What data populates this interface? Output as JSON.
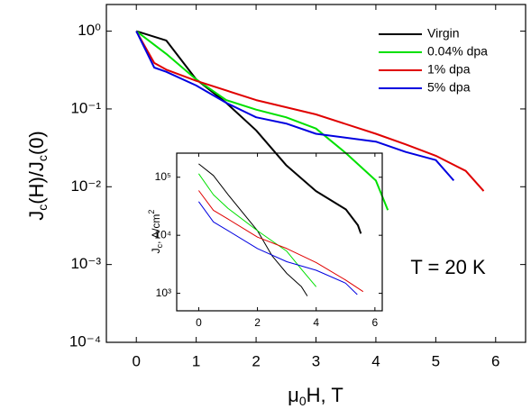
{
  "chart_data": [
    {
      "type": "line",
      "log_y": true,
      "legend": "upper right",
      "xlabel": [
        "μ",
        "0",
        "H, T"
      ],
      "ylabel": [
        "J",
        "c",
        "(H)/J",
        "c",
        "(0)"
      ],
      "annotation": "T = 20 K",
      "xlim": [
        -0.5,
        6.5
      ],
      "xticks": [
        0,
        1,
        2,
        3,
        4,
        5,
        6
      ],
      "ylim": [
        0.0001,
        2.2
      ],
      "yticks": [
        {
          "value": 0.0001,
          "label": "10⁻⁴"
        },
        {
          "value": 0.001,
          "label": "10⁻³"
        },
        {
          "value": 0.01,
          "label": "10⁻²"
        },
        {
          "value": 0.1,
          "label": "10⁻¹"
        },
        {
          "value": 1,
          "label": "10⁰"
        }
      ],
      "series": [
        {
          "name": "Virgin",
          "color": "#000000",
          "x": [
            0,
            0.5,
            1,
            1.5,
            2,
            2.5,
            3,
            3.5,
            3.7,
            3.75
          ],
          "values": [
            1,
            0.76,
            0.24,
            0.12,
            0.053,
            0.019,
            0.0088,
            0.0051,
            0.0032,
            0.0025
          ]
        },
        {
          "name": "0.04% dpa",
          "color": "#00e000",
          "x": [
            0,
            0.5,
            1,
            1.5,
            2,
            2.5,
            3,
            3.5,
            4,
            4.2
          ],
          "values": [
            1,
            0.51,
            0.24,
            0.13,
            0.098,
            0.078,
            0.056,
            0.027,
            0.012,
            0.005
          ]
        },
        {
          "name": "1% dpa",
          "color": "#e00000",
          "x": [
            0,
            0.3,
            0.5,
            1,
            2,
            3,
            4,
            4.5,
            5,
            5.5,
            5.8
          ],
          "values": [
            1,
            0.39,
            0.32,
            0.23,
            0.13,
            0.085,
            0.048,
            0.035,
            0.025,
            0.016,
            0.0088
          ]
        },
        {
          "name": "5% dpa",
          "color": "#0000e0",
          "x": [
            0,
            0.3,
            0.5,
            1,
            1.5,
            2,
            2.5,
            3,
            4,
            4.5,
            5,
            5.3
          ],
          "values": [
            1,
            0.34,
            0.3,
            0.2,
            0.12,
            0.078,
            0.065,
            0.048,
            0.038,
            0.028,
            0.022,
            0.012
          ]
        }
      ]
    },
    {
      "type": "line",
      "log_y": true,
      "ylabel": [
        "J",
        "c",
        ", A/cm",
        "2"
      ],
      "xlim": [
        -0.75,
        6.25
      ],
      "xticks": [
        0,
        2,
        4,
        6
      ],
      "ylim": [
        500,
        260000
      ],
      "yticks": [
        {
          "value": 1000,
          "label": "10³"
        },
        {
          "value": 10000,
          "label": "10⁴"
        },
        {
          "value": 100000,
          "label": "10⁵"
        }
      ],
      "series": [
        {
          "color": "#000000",
          "x": [
            0,
            0.5,
            1,
            2,
            2.5,
            3,
            3.5,
            3.7
          ],
          "values": [
            170000,
            107000,
            50000,
            12000,
            4400,
            2200,
            1300,
            900
          ]
        },
        {
          "color": "#00e000",
          "x": [
            0,
            0.5,
            1,
            2,
            3,
            3.5,
            4
          ],
          "values": [
            115000,
            50000,
            29000,
            12000,
            5300,
            2600,
            1300
          ]
        },
        {
          "color": "#e00000",
          "x": [
            0,
            0.5,
            1,
            2,
            3,
            4,
            5,
            5.6
          ],
          "values": [
            59000,
            27000,
            19000,
            9300,
            5900,
            3400,
            1700,
            1070
          ]
        },
        {
          "color": "#0000e0",
          "x": [
            0,
            0.5,
            1,
            2,
            3,
            4,
            5,
            5.4
          ],
          "values": [
            38000,
            17000,
            12000,
            5900,
            3500,
            2500,
            1500,
            950
          ]
        }
      ]
    }
  ]
}
